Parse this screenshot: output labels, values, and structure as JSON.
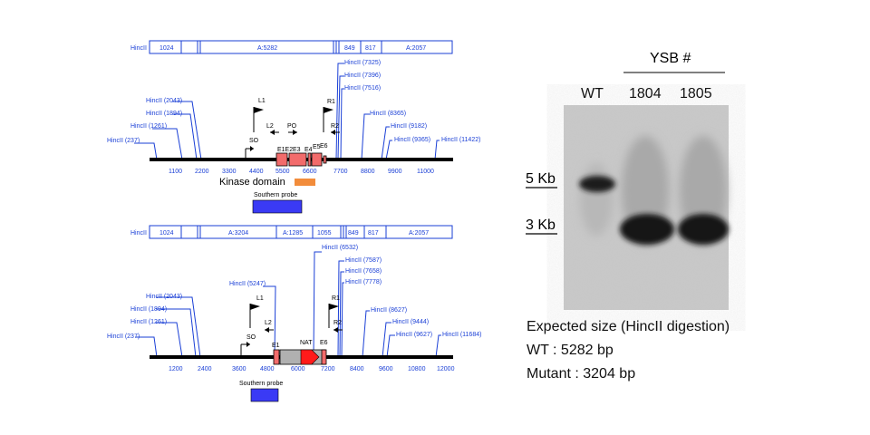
{
  "wt_map": {
    "header_segments": [
      "HincII",
      "1024",
      "A:5282",
      "849",
      "817",
      "A:2057"
    ],
    "sites": [
      "HincII (237)",
      "HincII (1261)",
      "HincII (1894)",
      "HincII (2043)",
      "HincII (7325)",
      "HincII (7396)",
      "HincII (7516)",
      "HincII (8365)",
      "HincII (9182)",
      "HincII (9365)",
      "HincII (11422)"
    ],
    "primers": [
      "L1",
      "L2",
      "SO",
      "PO",
      "R1",
      "R2"
    ],
    "exons": [
      "E1E2",
      "E3",
      "E4",
      "E5",
      "E6"
    ],
    "ticks": [
      "1100",
      "2200",
      "3300",
      "4400",
      "5500",
      "6600",
      "7700",
      "8800",
      "9900",
      "11000"
    ],
    "kinase_label": "Kinase domain",
    "probe_label": "Southern probe"
  },
  "mutant_map": {
    "header_segments": [
      "HincII",
      "1024",
      "A:3204",
      "A:1285",
      "1055",
      "849",
      "817",
      "A:2057"
    ],
    "sites": [
      "HincII (237)",
      "HincII (1261)",
      "HincII (1894)",
      "HincII (2043)",
      "HincII (5247)",
      "HincII (6532)",
      "HincII (7587)",
      "HincII (7658)",
      "HincII (7778)",
      "HincII (8627)",
      "HincII (9444)",
      "HincII (9627)",
      "HincII (11684)"
    ],
    "primers": [
      "L1",
      "L2",
      "SO",
      "R1",
      "R2"
    ],
    "exons": [
      "E1",
      "NAT",
      "E6"
    ],
    "ticks": [
      "1200",
      "2400",
      "3600",
      "4800",
      "6000",
      "7200",
      "8400",
      "9600",
      "10800",
      "12000"
    ],
    "probe_label": "Southern probe"
  },
  "gel": {
    "group_label": "YSB #",
    "lanes": [
      "WT",
      "1804",
      "1805"
    ],
    "markers": [
      "5 Kb",
      "3 Kb"
    ]
  },
  "caption": {
    "line1": "Expected size (HincII digestion)",
    "line2": "WT : 5282 bp",
    "line3": "Mutant : 3204 bp"
  }
}
